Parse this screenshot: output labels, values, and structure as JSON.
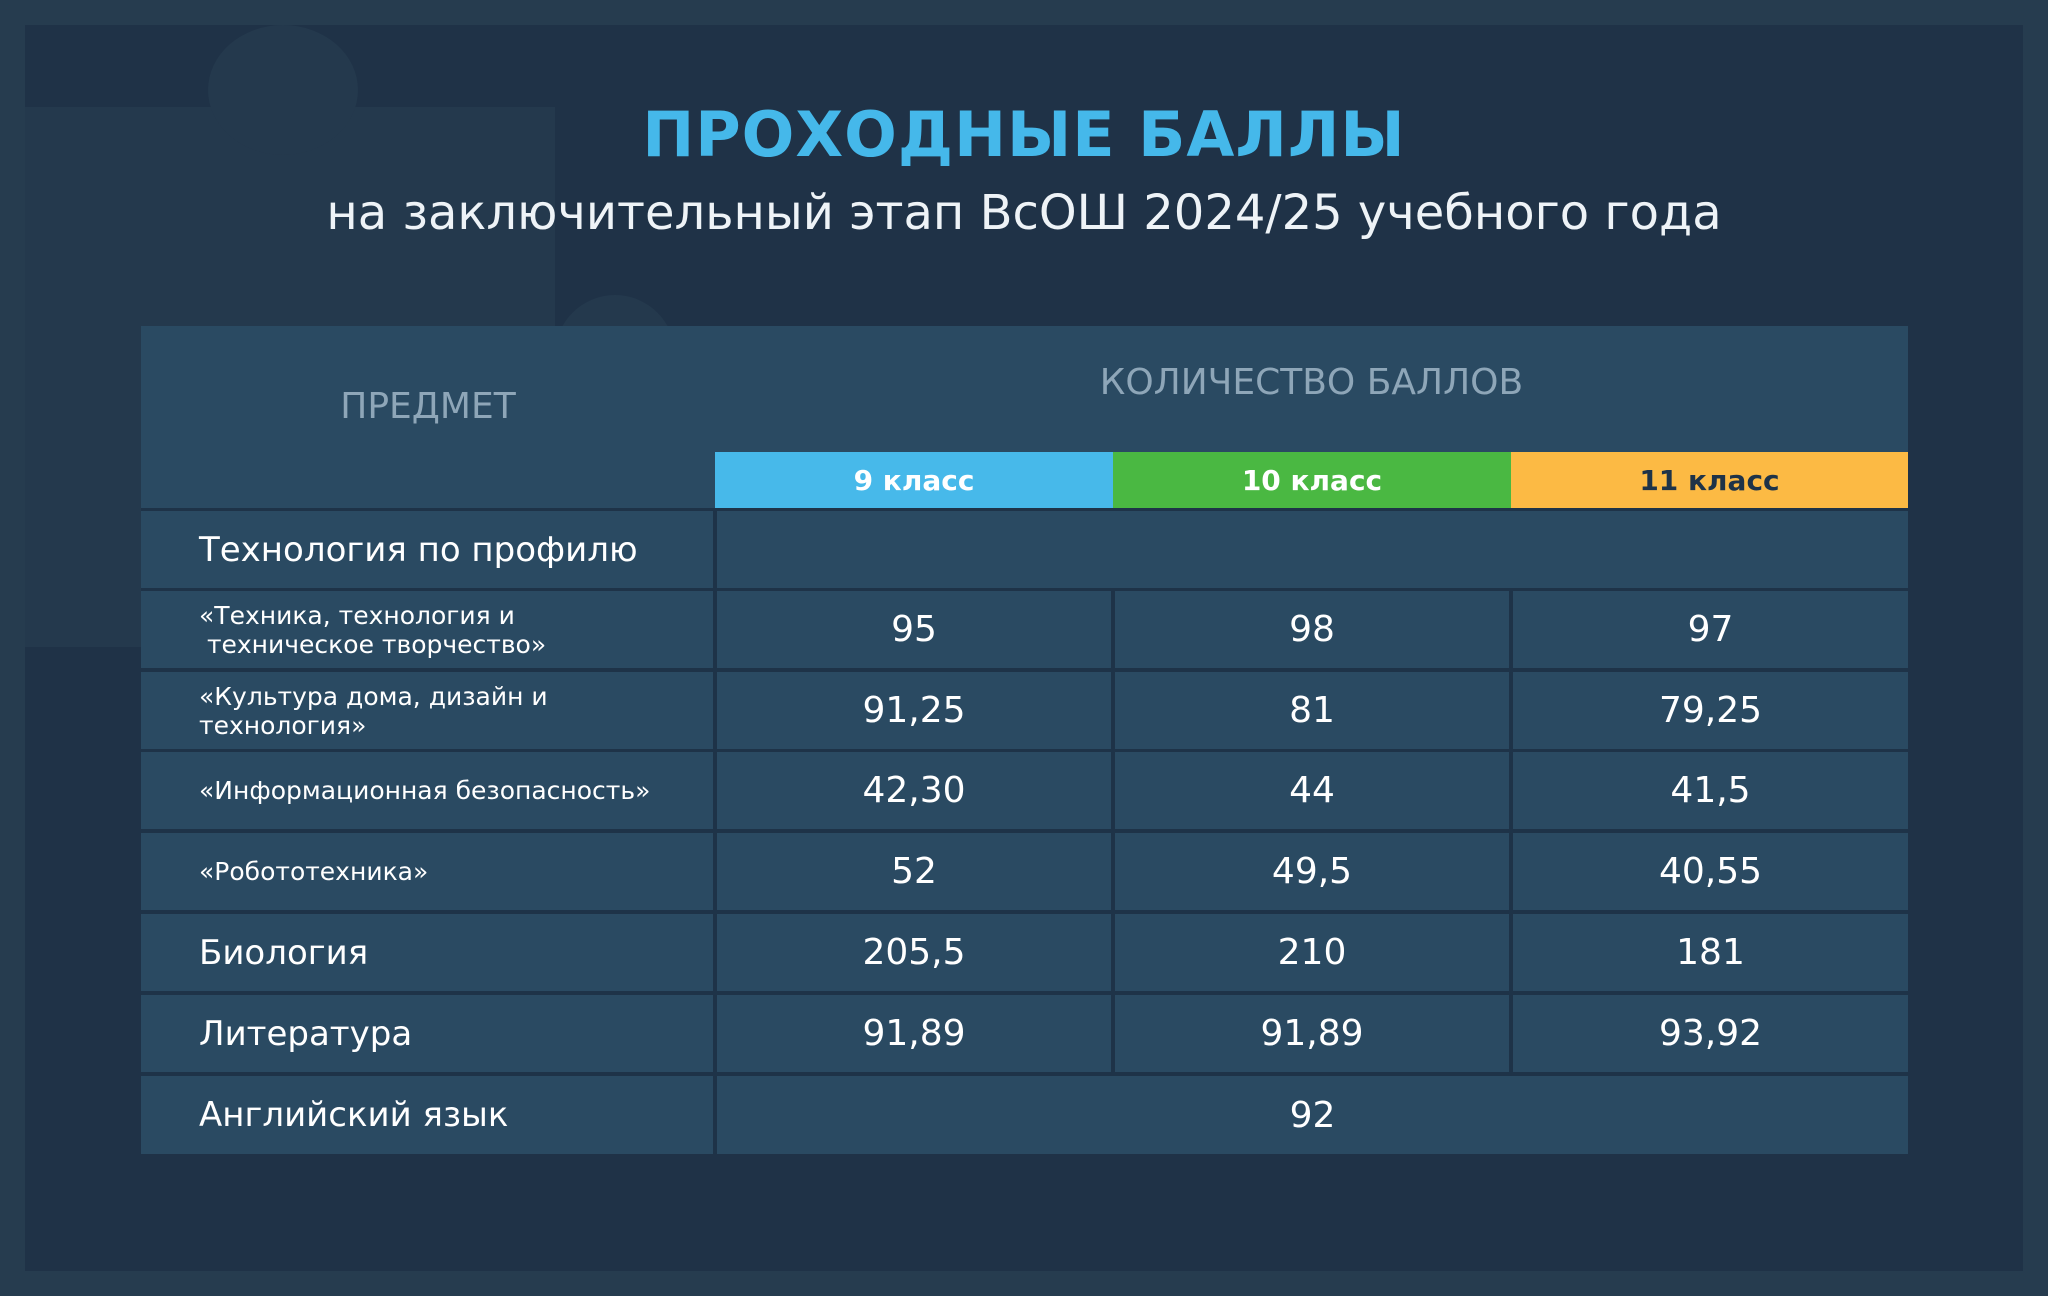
{
  "title": "ПРОХОДНЫЕ БАЛЛЫ",
  "subtitle": "на заключительный этап ВсОШ 2024/25 учебного года",
  "table": {
    "subject_header": "ПРЕДМЕТ",
    "score_header": "КОЛИЧЕСТВО БАЛЛОВ",
    "grades": [
      {
        "label": "9 класс",
        "color": "#47b9ea",
        "text_color": "#ffffff"
      },
      {
        "label": "10 класс",
        "color": "#4ab842",
        "text_color": "#ffffff"
      },
      {
        "label": "11 класс",
        "color": "#fcba44",
        "text_color": "#1e3348"
      }
    ],
    "rows": [
      {
        "subject": "Технология по профилю",
        "scores": [
          "",
          "",
          ""
        ]
      },
      {
        "subject_line1": "«Техника, технология и",
        "subject_line2": " техническое творчество»",
        "scores": [
          "95",
          "98",
          "97"
        ]
      },
      {
        "subject": "«Культура дома, дизайн и технология»",
        "scores": [
          "91,25",
          "81",
          "79,25"
        ]
      },
      {
        "subject": "«Информационная безопасность»",
        "scores": [
          "42,30",
          "44",
          "41,5"
        ]
      },
      {
        "subject": "«Робототехника»",
        "scores": [
          "52",
          "49,5",
          "40,55"
        ]
      },
      {
        "subject": "Биология",
        "scores": [
          "205,5",
          "210",
          "181"
        ]
      },
      {
        "subject": "Литература",
        "scores": [
          "91,89",
          "91,89",
          "93,92"
        ]
      },
      {
        "subject": "Английский язык",
        "merged_score": "92"
      }
    ]
  },
  "colors": {
    "background": "#263c4f",
    "title": "#45b8ea",
    "cell": "#2a4a62",
    "header_text": "#8ea6b8"
  }
}
